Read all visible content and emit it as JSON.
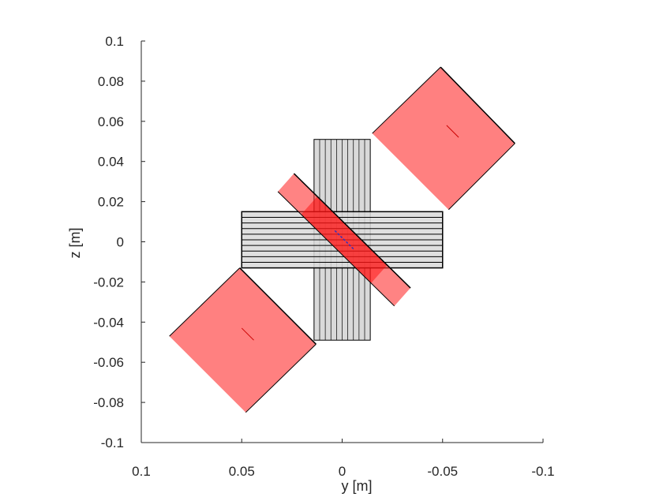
{
  "chart_data": {
    "type": "scatter",
    "title": "",
    "xlabel": "y [m]",
    "ylabel": "z [m]",
    "xlim": [
      0.1,
      -0.1
    ],
    "ylim": [
      -0.1,
      0.1
    ],
    "x_reversed": true,
    "x_ticks": [
      {
        "value": 0.1,
        "label": "0.1"
      },
      {
        "value": 0.05,
        "label": "0.05"
      },
      {
        "value": 0,
        "label": "0"
      },
      {
        "value": -0.05,
        "label": "-0.05"
      },
      {
        "value": -0.1,
        "label": "-0.1"
      }
    ],
    "y_ticks": [
      {
        "value": 0.1,
        "label": "0.1"
      },
      {
        "value": 0.08,
        "label": "0.08"
      },
      {
        "value": 0.06,
        "label": "0.06"
      },
      {
        "value": 0.04,
        "label": "0.04"
      },
      {
        "value": 0.02,
        "label": "0.02"
      },
      {
        "value": 0,
        "label": "0"
      },
      {
        "value": -0.02,
        "label": "-0.02"
      },
      {
        "value": -0.04,
        "label": "-0.04"
      },
      {
        "value": -0.06,
        "label": "-0.06"
      },
      {
        "value": -0.08,
        "label": "-0.08"
      },
      {
        "value": -0.1,
        "label": "-0.1"
      }
    ],
    "grid": false,
    "colors": {
      "gray_fill": "#d9d9d9",
      "gray_edge": "#000000",
      "red_light": "#ff8080",
      "red_strong": "#ff3030",
      "red_overlap": "#ff0000",
      "axis": "#262626"
    },
    "shapes": {
      "vertical_bar": {
        "y_range": [
          0.014,
          -0.014
        ],
        "z_range": [
          -0.049,
          0.051
        ],
        "stripes": 10
      },
      "horizontal_bar": {
        "y_range": [
          0.05,
          -0.05
        ],
        "z_range": [
          -0.013,
          0.015
        ],
        "stripes": 10
      },
      "diagonal_plate": [
        [
          0.032,
          0.025
        ],
        [
          0.024,
          0.034
        ],
        [
          -0.034,
          -0.023
        ],
        [
          -0.026,
          -0.032
        ]
      ],
      "square_top_right": [
        [
          -0.015,
          0.054
        ],
        [
          -0.049,
          0.087
        ],
        [
          -0.086,
          0.049
        ],
        [
          -0.053,
          0.016
        ]
      ],
      "square_bottom_left": [
        [
          0.086,
          -0.047
        ],
        [
          0.051,
          -0.013
        ],
        [
          0.013,
          -0.051
        ],
        [
          0.048,
          -0.085
        ]
      ],
      "square_top_right_marker": [
        [
          -0.052,
          0.058
        ],
        [
          -0.058,
          0.052
        ]
      ],
      "square_bottom_left_marker": [
        [
          0.05,
          -0.043
        ],
        [
          0.044,
          -0.049
        ]
      ]
    }
  }
}
